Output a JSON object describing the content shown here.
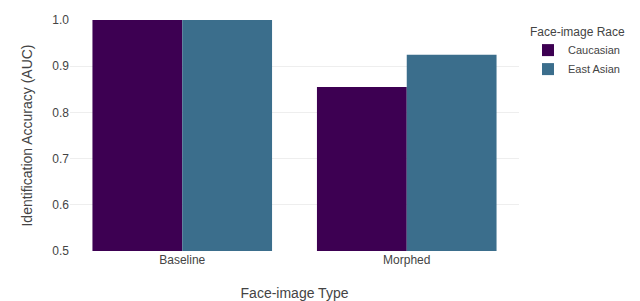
{
  "chart_data": {
    "type": "bar",
    "categories": [
      "Baseline",
      "Morphed"
    ],
    "series": [
      {
        "name": "Caucasian",
        "color": "#3D0052",
        "values": [
          1.0,
          0.855
        ]
      },
      {
        "name": "East Asian",
        "color": "#3B6E8C",
        "values": [
          1.0,
          0.925
        ]
      }
    ],
    "xlabel": "Face-image Type",
    "ylabel": "Identification Accuracy (AUC)",
    "legend_title": "Face-image Race",
    "legend": "upper right",
    "ylim": [
      0.5,
      1.0
    ],
    "yticks": [
      0.5,
      0.6,
      0.7,
      0.8,
      0.9,
      {
        "value": 1.0,
        "label": "1.0"
      }
    ],
    "grid": true
  }
}
